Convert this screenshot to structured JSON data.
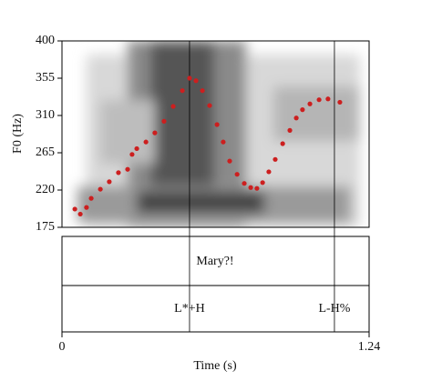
{
  "chart_data": {
    "type": "scatter",
    "x_label": "Time (s)",
    "y_label": "F0 (Hz)",
    "xlim": [
      0,
      1.24
    ],
    "xticks": [
      0,
      1.24
    ],
    "ylim": [
      175,
      400
    ],
    "yticks": [
      175,
      220,
      265,
      310,
      355,
      400
    ],
    "color": "#cc1f1f",
    "x": [
      0.052,
      0.074,
      0.099,
      0.118,
      0.155,
      0.191,
      0.228,
      0.265,
      0.283,
      0.302,
      0.339,
      0.375,
      0.412,
      0.449,
      0.486,
      0.515,
      0.541,
      0.567,
      0.596,
      0.626,
      0.651,
      0.677,
      0.707,
      0.736,
      0.762,
      0.787,
      0.81,
      0.835,
      0.861,
      0.891,
      0.92,
      0.946,
      0.971,
      1.001,
      1.038,
      1.074,
      1.122
    ],
    "values": [
      197,
      191,
      199,
      210,
      221,
      230,
      241,
      245,
      263,
      270,
      278,
      289,
      303,
      321,
      340,
      355,
      352,
      340,
      322,
      299,
      278,
      255,
      239,
      228,
      223,
      222,
      229,
      242,
      257,
      276,
      292,
      307,
      317,
      324,
      329,
      330,
      326
    ],
    "word_tier": [
      "Mary?!"
    ],
    "tone_tier": [
      {
        "time": 0.515,
        "label": "L*+H"
      },
      {
        "time": 1.1,
        "label": "L-H%"
      }
    ]
  }
}
